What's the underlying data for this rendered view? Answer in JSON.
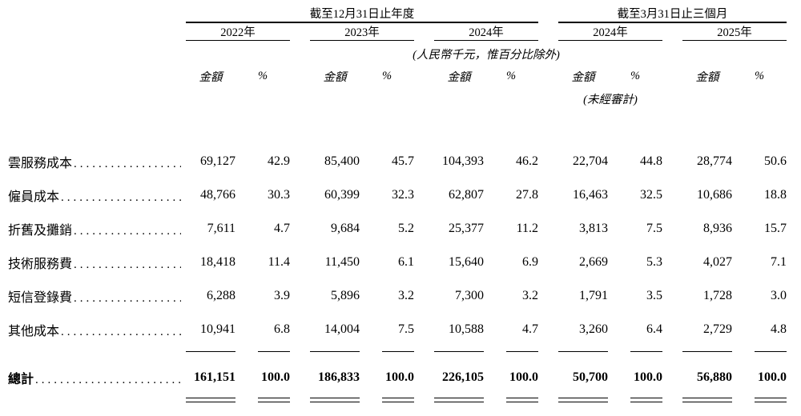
{
  "page": {
    "background_color": "#ffffff",
    "text_color": "#000000",
    "rule_color": "#000000"
  },
  "table": {
    "headers": {
      "annual_group": "截至12月31日止年度",
      "quarter_group": "截至3月31日止三個月",
      "years": [
        "2022年",
        "2023年",
        "2024年",
        "2024年",
        "2025年"
      ],
      "currency_note": "(人民幣千元，惟百分比除外)",
      "amount_label": "金額",
      "percent_label": "%",
      "unaudited_note": "(未經審計)"
    },
    "dot_leader": "............................................................",
    "rows": [
      {
        "label": "雲服務成本",
        "values": [
          "69,127",
          "42.9",
          "85,400",
          "45.7",
          "104,393",
          "46.2",
          "22,704",
          "44.8",
          "28,774",
          "50.6"
        ]
      },
      {
        "label": "僱員成本",
        "values": [
          "48,766",
          "30.3",
          "60,399",
          "32.3",
          "62,807",
          "27.8",
          "16,463",
          "32.5",
          "10,686",
          "18.8"
        ]
      },
      {
        "label": "折舊及攤銷",
        "values": [
          "7,611",
          "4.7",
          "9,684",
          "5.2",
          "25,377",
          "11.2",
          "3,813",
          "7.5",
          "8,936",
          "15.7"
        ]
      },
      {
        "label": "技術服務費",
        "values": [
          "18,418",
          "11.4",
          "11,450",
          "6.1",
          "15,640",
          "6.9",
          "2,669",
          "5.3",
          "4,027",
          "7.1"
        ]
      },
      {
        "label": "短信登錄費",
        "values": [
          "6,288",
          "3.9",
          "5,896",
          "3.2",
          "7,300",
          "3.2",
          "1,791",
          "3.5",
          "1,728",
          "3.0"
        ]
      },
      {
        "label": "其他成本",
        "values": [
          "10,941",
          "6.8",
          "14,004",
          "7.5",
          "10,588",
          "4.7",
          "3,260",
          "6.4",
          "2,729",
          "4.8"
        ]
      }
    ],
    "total": {
      "label": "總計",
      "values": [
        "161,151",
        "100.0",
        "186,833",
        "100.0",
        "226,105",
        "100.0",
        "50,700",
        "100.0",
        "56,880",
        "100.0"
      ]
    }
  }
}
